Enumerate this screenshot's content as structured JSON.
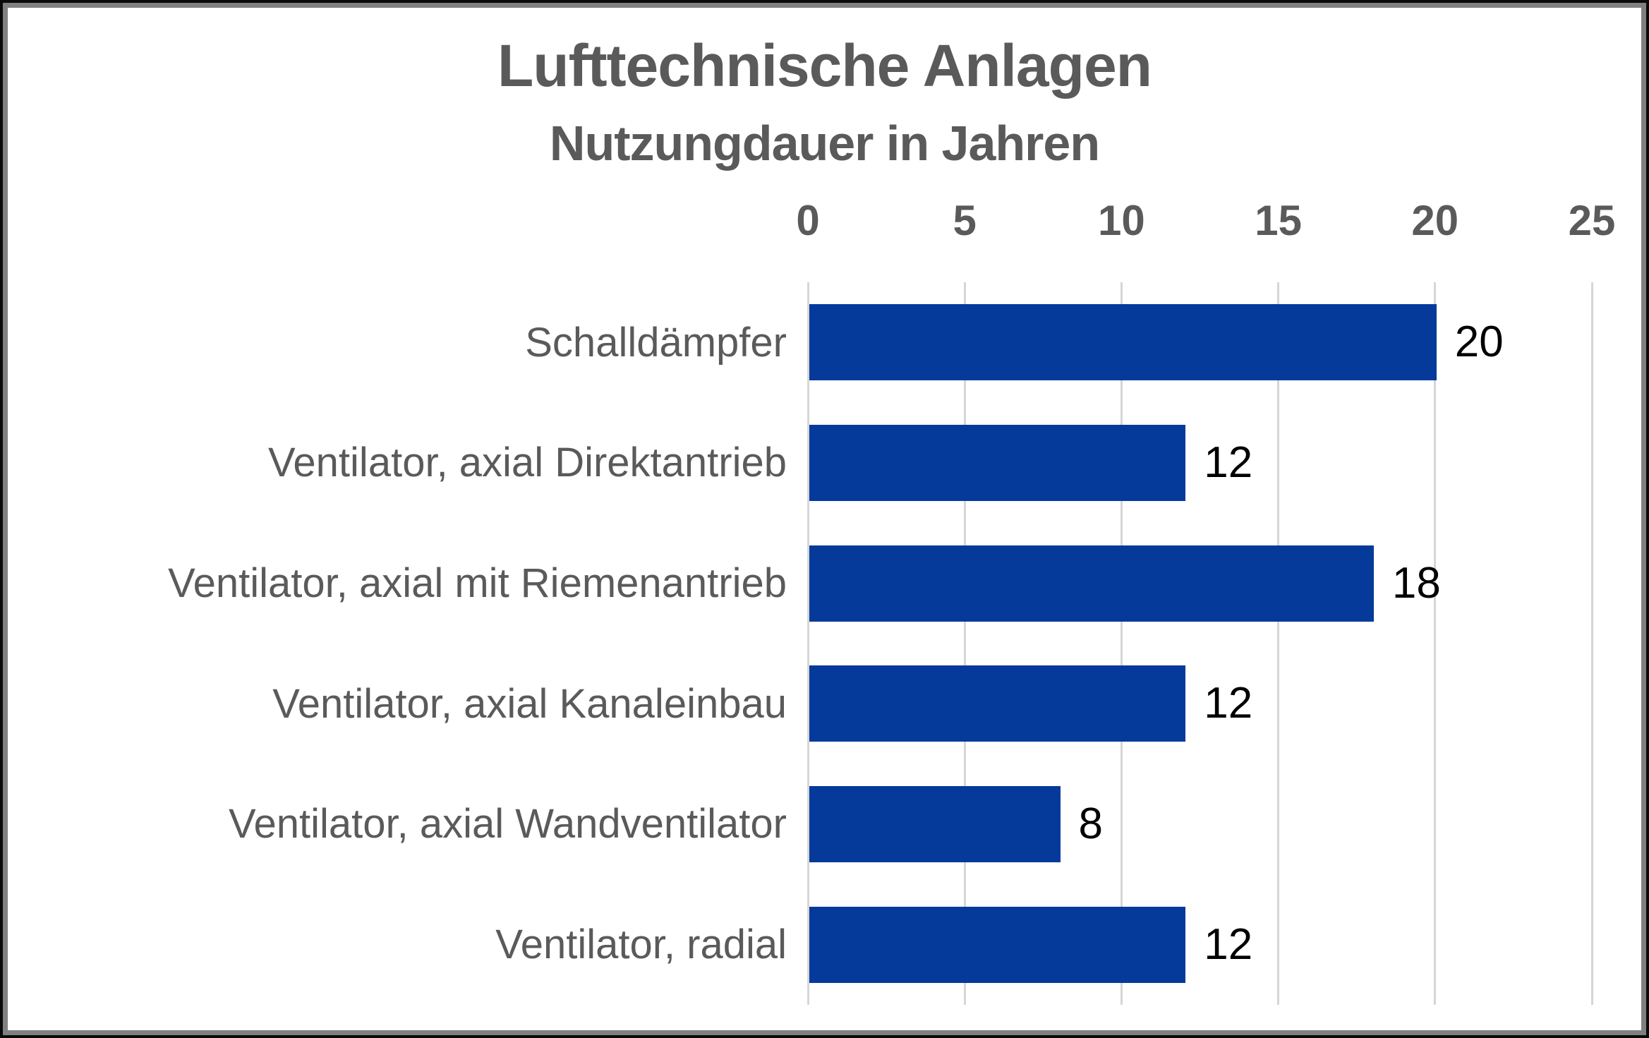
{
  "chart_data": {
    "type": "bar",
    "orientation": "horizontal",
    "title": "Lufttechnische Anlagen",
    "subtitle": "Nutzungdauer in Jahren",
    "categories": [
      "Schalldämpfer",
      "Ventilator, axial Direktantrieb",
      "Ventilator, axial mit Riemenantrieb",
      "Ventilator, axial Kanaleinbau",
      "Ventilator, axial Wandventilator",
      "Ventilator, radial"
    ],
    "values": [
      20,
      12,
      18,
      12,
      8,
      12
    ],
    "data_labels": [
      "20",
      "12",
      "18",
      "12",
      "8",
      "12"
    ],
    "xlim": [
      0,
      25
    ],
    "xticks": [
      "0",
      "5",
      "10",
      "15",
      "20",
      "25"
    ],
    "grid": true,
    "axis_position": "top",
    "legend": "none",
    "colors": {
      "bar": "#053a9b",
      "title_text": "#5a5a5a",
      "axis_text": "#5a5a5a",
      "value_text": "#000000",
      "gridline": "#d6d6d6",
      "frame_inner": "#808080",
      "frame_outer": "#0a0a0a",
      "background": "#ffffff"
    }
  }
}
